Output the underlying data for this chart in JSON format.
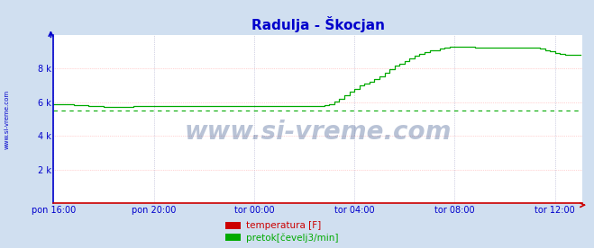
{
  "title": "Radulja - Škocjan",
  "title_color": "#0000cc",
  "bg_color": "#d0dff0",
  "plot_bg_color": "#ffffff",
  "grid_color_h": "#ffaaaa",
  "grid_color_v": "#aaaacc",
  "xlabel_color": "#0000cc",
  "ylabel_color": "#0000cc",
  "ytick_labels": [
    "",
    "2 k",
    "4 k",
    "6 k",
    "8 k"
  ],
  "ytick_vals": [
    0,
    2000,
    4000,
    6000,
    8000
  ],
  "ylim": [
    0,
    10000
  ],
  "xtick_labels": [
    "pon 16:00",
    "pon 20:00",
    "tor 00:00",
    "tor 04:00",
    "tor 08:00",
    "tor 12:00"
  ],
  "watermark": "www.si-vreme.com",
  "legend_labels": [
    "temperatura [F]",
    "pretok[čevelj3/min]"
  ],
  "legend_colors": [
    "#cc0000",
    "#00aa00"
  ],
  "flow_color": "#00aa00",
  "temp_color": "#cc0000",
  "dashed_line_y": 5480,
  "dashed_line_color": "#00aa00",
  "spine_left_color": "#0000cc",
  "spine_bottom_color": "#cc0000",
  "flow_data_x": [
    0,
    12,
    24,
    36,
    48,
    60,
    72,
    84,
    96,
    108,
    120,
    132,
    144,
    156,
    168,
    180,
    192,
    204,
    216,
    228,
    240,
    252,
    264,
    276,
    288,
    300,
    312,
    324,
    336,
    348,
    360,
    372,
    384,
    396,
    408,
    420,
    432,
    444,
    456,
    468,
    480,
    492,
    504,
    516,
    528,
    540,
    552,
    564,
    576,
    588,
    600,
    612,
    624,
    636,
    648,
    660,
    672,
    684,
    696,
    708,
    720,
    732,
    744,
    756,
    768,
    780,
    792,
    804,
    816,
    828,
    840,
    852,
    864,
    876,
    888,
    900,
    912,
    924,
    936,
    948,
    960,
    972,
    984,
    996,
    1008,
    1020,
    1032,
    1044,
    1056,
    1068,
    1080,
    1092,
    1104,
    1116,
    1128,
    1140,
    1152,
    1164,
    1176,
    1188,
    1200,
    1212,
    1224,
    1236,
    1248,
    1260
  ],
  "flow_data_y": [
    5900,
    5900,
    5880,
    5870,
    5850,
    5820,
    5800,
    5780,
    5760,
    5750,
    5740,
    5740,
    5740,
    5740,
    5740,
    5740,
    5750,
    5750,
    5750,
    5750,
    5750,
    5750,
    5750,
    5750,
    5750,
    5750,
    5750,
    5750,
    5750,
    5750,
    5750,
    5750,
    5750,
    5750,
    5750,
    5750,
    5750,
    5750,
    5750,
    5750,
    5750,
    5750,
    5750,
    5750,
    5750,
    5750,
    5750,
    5750,
    5750,
    5750,
    5750,
    5750,
    5750,
    5750,
    5800,
    5900,
    6050,
    6200,
    6400,
    6600,
    6800,
    7000,
    7100,
    7200,
    7350,
    7550,
    7750,
    7950,
    8150,
    8300,
    8450,
    8600,
    8750,
    8850,
    8950,
    9050,
    9100,
    9200,
    9260,
    9300,
    9310,
    9310,
    9300,
    9280,
    9260,
    9260,
    9240,
    9230,
    9230,
    9230,
    9220,
    9220,
    9220,
    9220,
    9220,
    9220,
    9220,
    9180,
    9100,
    9000,
    8900,
    8860,
    8820,
    8820,
    8820,
    8820
  ],
  "temp_data_y": [
    0,
    0,
    0,
    0,
    0,
    0,
    0,
    0,
    0,
    0,
    0,
    0,
    0,
    0,
    0,
    0,
    0,
    0,
    0,
    0,
    0,
    0,
    0,
    0,
    0,
    0,
    0,
    0,
    0,
    0,
    0,
    0,
    0,
    0,
    0,
    0,
    0,
    0,
    0,
    0,
    0,
    0,
    0,
    0,
    0,
    0,
    0,
    0,
    0,
    0,
    0,
    0,
    0,
    0,
    0,
    0,
    0,
    0,
    0,
    0,
    0,
    0,
    0,
    0,
    0,
    0,
    0,
    0,
    0,
    0,
    0,
    0,
    0,
    0,
    0,
    0,
    0,
    0,
    0,
    0,
    0,
    0,
    0,
    0,
    0,
    0,
    0,
    0,
    0,
    0,
    0,
    0,
    0,
    0,
    0,
    0,
    0,
    0,
    0,
    0,
    0,
    0,
    0,
    0,
    0,
    0
  ],
  "xlim_minutes": [
    0,
    1265
  ],
  "xtick_minutes": [
    0,
    240,
    480,
    720,
    960,
    1200
  ]
}
